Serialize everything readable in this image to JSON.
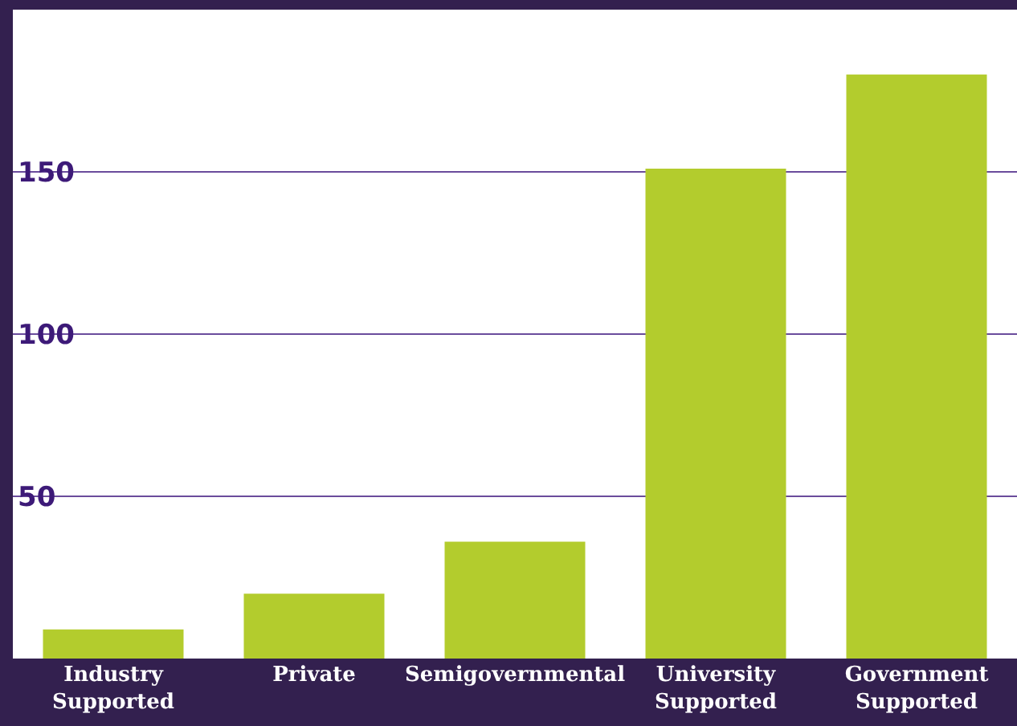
{
  "chart_data": {
    "type": "bar",
    "categories": [
      "Industry Supported",
      "Private",
      "Semigovernmental",
      "University Supported",
      "Government Supported"
    ],
    "values": [
      9,
      20,
      36,
      151,
      180
    ],
    "color": "#b3cc2d",
    "ylim": [
      0,
      200
    ],
    "yticks": [
      50,
      100,
      150
    ],
    "grid": "y"
  }
}
